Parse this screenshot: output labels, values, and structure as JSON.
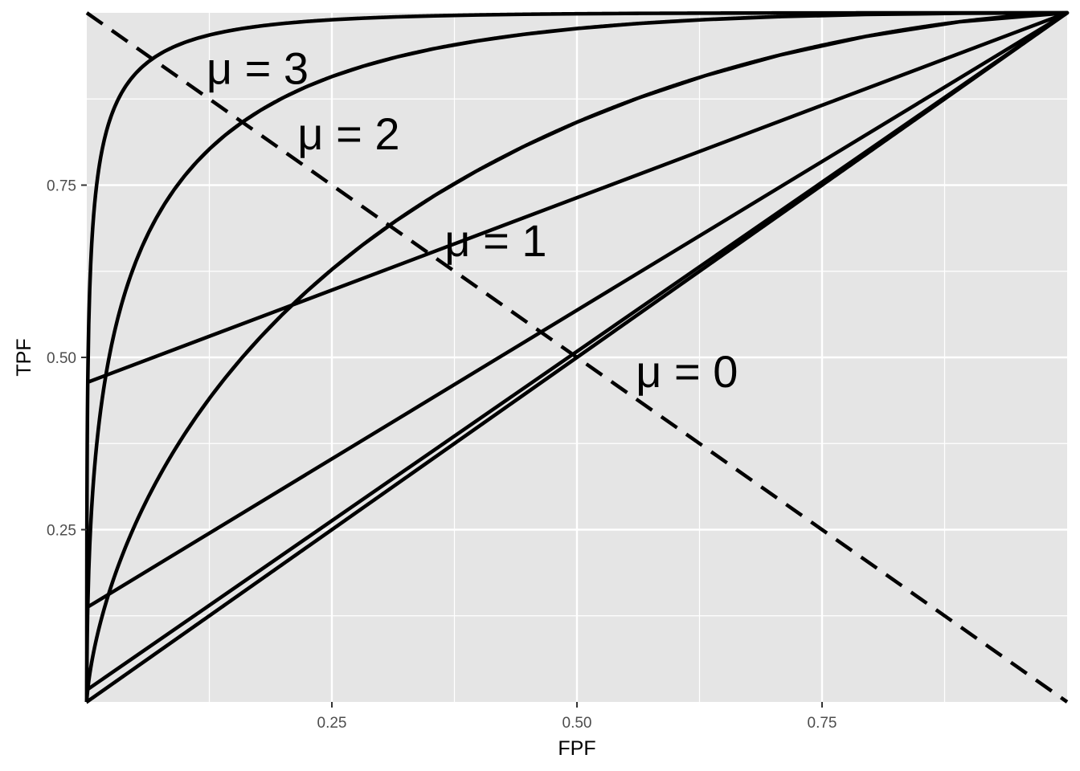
{
  "chart_data": {
    "type": "line",
    "title": "",
    "xlabel": "FPF",
    "ylabel": "TPF",
    "xlim": [
      0,
      1
    ],
    "ylim": [
      0,
      1
    ],
    "x_ticks": [
      0.25,
      0.5,
      0.75
    ],
    "x_tick_labels": [
      "0.25",
      "0.50",
      "0.75"
    ],
    "y_ticks": [
      0.25,
      0.5,
      0.75
    ],
    "y_tick_labels": [
      "0.25",
      "0.50",
      "0.75"
    ],
    "grid": true,
    "series": [
      {
        "model": "binormal",
        "mu": 0,
        "label": "μ = 0",
        "label_at": [
          0.56,
          0.48
        ],
        "x": [
          0,
          0.1,
          0.2,
          0.3,
          0.4,
          0.5,
          0.6,
          0.7,
          0.8,
          0.9,
          1
        ],
        "y": [
          0,
          0.1,
          0.2,
          0.3,
          0.4,
          0.5,
          0.6,
          0.7,
          0.8,
          0.9,
          1
        ]
      },
      {
        "model": "binormal",
        "mu": 1,
        "label": "μ = 1",
        "label_at": [
          0.365,
          0.67
        ],
        "x": [
          0,
          0.05,
          0.1,
          0.2,
          0.3,
          0.4,
          0.5,
          0.6,
          0.7,
          0.8,
          0.9,
          1
        ],
        "y": [
          0,
          0.26,
          0.39,
          0.56,
          0.69,
          0.78,
          0.84,
          0.89,
          0.93,
          0.96,
          0.99,
          1
        ]
      },
      {
        "model": "binormal",
        "mu": 2,
        "label": "μ = 2",
        "label_at": [
          0.215,
          0.825
        ],
        "x": [
          0,
          0.02,
          0.05,
          0.1,
          0.2,
          0.3,
          0.5,
          0.7,
          1
        ],
        "y": [
          0,
          0.43,
          0.61,
          0.74,
          0.88,
          0.94,
          0.98,
          0.995,
          1
        ]
      },
      {
        "model": "binormal",
        "mu": 3,
        "label": "μ = 3",
        "label_at": [
          0.122,
          0.92
        ],
        "x": [
          0,
          0.005,
          0.01,
          0.02,
          0.05,
          0.1,
          0.2,
          0.5,
          1
        ],
        "y": [
          0,
          0.56,
          0.69,
          0.81,
          0.91,
          0.96,
          0.99,
          0.999,
          1
        ]
      }
    ],
    "reference_line": {
      "style": "dashed",
      "x": [
        0,
        1
      ],
      "y": [
        1,
        0
      ]
    },
    "line_color": "#000000",
    "panel_background": "#e5e5e5",
    "grid_color": "#ffffff"
  }
}
